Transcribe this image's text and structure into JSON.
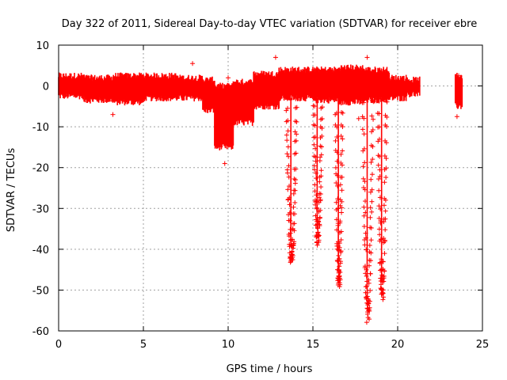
{
  "chart_data": {
    "type": "scatter",
    "title": "Day 322 of 2011, Sidereal Day-to-day VTEC variation (SDTVAR) for receiver ebre",
    "xlabel": "GPS time / hours",
    "ylabel": "SDTVAR / TECUs",
    "xlim": [
      0,
      25
    ],
    "ylim": [
      -60,
      10
    ],
    "xticks": [
      "0",
      "5",
      "10",
      "15",
      "20",
      "25"
    ],
    "yticks": [
      "10",
      "0",
      "-10",
      "-20",
      "-30",
      "-40",
      "-50",
      "-60"
    ],
    "grid": true,
    "marker": "+",
    "color": "#ff0000",
    "band_segments": [
      {
        "x": [
          0.0,
          1.5
        ],
        "y": [
          -2.5,
          2.5
        ]
      },
      {
        "x": [
          1.5,
          3.2
        ],
        "y": [
          -3.5,
          2.0
        ]
      },
      {
        "x": [
          3.2,
          5.0
        ],
        "y": [
          -4.0,
          2.5
        ]
      },
      {
        "x": [
          5.0,
          7.0
        ],
        "y": [
          -3.0,
          2.5
        ]
      },
      {
        "x": [
          7.0,
          8.5
        ],
        "y": [
          -3.0,
          2.0
        ]
      },
      {
        "x": [
          8.5,
          9.2
        ],
        "y": [
          -6.0,
          1.5
        ]
      },
      {
        "x": [
          9.2,
          10.3
        ],
        "y": [
          -15.0,
          0.0
        ]
      },
      {
        "x": [
          10.3,
          11.5
        ],
        "y": [
          -9.0,
          1.0
        ]
      },
      {
        "x": [
          11.5,
          13.0
        ],
        "y": [
          -5.0,
          3.0
        ]
      },
      {
        "x": [
          13.0,
          15.0
        ],
        "y": [
          -3.0,
          4.0
        ]
      },
      {
        "x": [
          15.0,
          16.5
        ],
        "y": [
          -3.5,
          4.0
        ]
      },
      {
        "x": [
          16.5,
          18.0
        ],
        "y": [
          -4.0,
          4.5
        ]
      },
      {
        "x": [
          18.0,
          19.5
        ],
        "y": [
          -3.5,
          4.0
        ]
      },
      {
        "x": [
          19.5,
          20.5
        ],
        "y": [
          -3.0,
          2.0
        ]
      },
      {
        "x": [
          20.5,
          21.3
        ],
        "y": [
          -2.0,
          1.5
        ]
      },
      {
        "x": [
          23.4,
          23.8
        ],
        "y": [
          -5.0,
          2.5
        ]
      }
    ],
    "dip_events": [
      {
        "x": [
          13.4,
          14.0
        ],
        "y_min": -44
      },
      {
        "x": [
          15.0,
          15.5
        ],
        "y_min": -39
      },
      {
        "x": [
          16.3,
          16.7
        ],
        "y_min": -50
      },
      {
        "x": [
          17.9,
          18.5
        ],
        "y_min": -58
      },
      {
        "x": [
          18.8,
          19.3
        ],
        "y_min": -53
      }
    ],
    "outliers": [
      {
        "x": 7.9,
        "y": 5.5
      },
      {
        "x": 10.0,
        "y": 2.0
      },
      {
        "x": 3.2,
        "y": -7.0
      },
      {
        "x": 9.8,
        "y": -19.0
      },
      {
        "x": 12.8,
        "y": 7.0
      },
      {
        "x": 17.7,
        "y": -8.0
      },
      {
        "x": 18.2,
        "y": 7.0
      },
      {
        "x": 23.5,
        "y": -7.5
      },
      {
        "x": 23.6,
        "y": 2.5
      }
    ]
  }
}
